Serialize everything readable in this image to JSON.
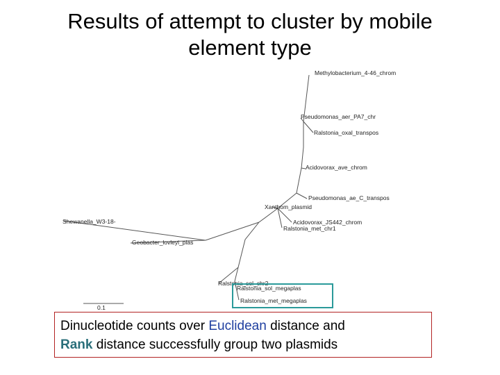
{
  "title": {
    "line1": "Results of attempt to cluster by mobile",
    "line2": "element type"
  },
  "tree": {
    "leaves": [
      "Methylobacterium_4-46_chrom",
      "Pseudomonas_aer_PA7_chr",
      "Ralstonia_oxal_transpos",
      "Acidovorax_ave_chrom",
      "Pseudomonas_ae_C_transpos",
      "Xanthom_plasmid",
      "Acidovorax_JS442_chrom",
      "Ralstonia_met_chr1",
      "Shewanella_W3-18-",
      "Geobacter_lovleyi_plas",
      "Ralstonia_sol_chr2",
      "Ralstonia_sol_megaplas",
      "Ralstonia_met_megaplas"
    ],
    "scale_label": "0.1",
    "highlight_color": "#2a9a9a",
    "branch_color": "#555555"
  },
  "caption": {
    "part1": "Dinucleotide counts over ",
    "euclidean": "Euclidean",
    "part2": " distance and",
    "rank": "Rank",
    "part3": " distance successfully group two plasmids",
    "border_color": "#b22222"
  }
}
